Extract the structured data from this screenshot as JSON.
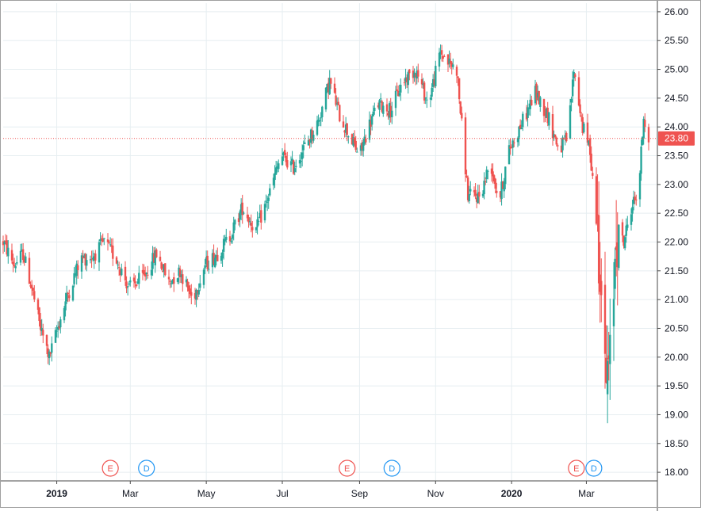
{
  "chart_data": {
    "type": "candlestick",
    "colors": {
      "up": "#26a69a",
      "down": "#ef5350",
      "grid": "#e6eef1",
      "axis": "#4a4a4a",
      "earnings": "#ef5350",
      "dividend": "#2196f3"
    },
    "ylim": [
      17.85,
      26.15
    ],
    "y_ticks": [
      "18.00",
      "18.50",
      "19.00",
      "19.50",
      "20.00",
      "20.50",
      "21.00",
      "21.50",
      "22.00",
      "22.50",
      "23.00",
      "23.50",
      "24.00",
      "24.50",
      "25.00",
      "25.50",
      "26.00"
    ],
    "x_ticks": [
      {
        "label": "2019",
        "date": "2019-01-01",
        "bold": true
      },
      {
        "label": "Mar",
        "date": "2019-03-01",
        "bold": false
      },
      {
        "label": "May",
        "date": "2019-05-01",
        "bold": false
      },
      {
        "label": "Jul",
        "date": "2019-07-01",
        "bold": false
      },
      {
        "label": "Sep",
        "date": "2019-09-01",
        "bold": false
      },
      {
        "label": "Nov",
        "date": "2019-11-01",
        "bold": false
      },
      {
        "label": "2020",
        "date": "2020-01-01",
        "bold": true
      },
      {
        "label": "Mar",
        "date": "2020-03-01",
        "bold": false
      }
    ],
    "x_range": [
      "2018-11-19",
      "2020-04-27"
    ],
    "last_price": {
      "value": 23.8,
      "label": "23.80"
    },
    "events": [
      {
        "type": "earnings",
        "label": "E",
        "date": "2019-02-13"
      },
      {
        "type": "dividend",
        "label": "D",
        "date": "2019-03-14"
      },
      {
        "type": "earnings",
        "label": "E",
        "date": "2019-08-22"
      },
      {
        "type": "dividend",
        "label": "D",
        "date": "2019-09-27"
      },
      {
        "type": "earnings",
        "label": "E",
        "date": "2020-02-22"
      },
      {
        "type": "dividend",
        "label": "D",
        "date": "2020-03-07"
      }
    ],
    "price_path": [
      [
        "2018-11-19",
        22.0
      ],
      [
        "2018-11-28",
        21.6
      ],
      [
        "2018-12-05",
        21.8
      ],
      [
        "2018-12-12",
        21.2
      ],
      [
        "2018-12-19",
        20.5
      ],
      [
        "2018-12-26",
        20.0
      ],
      [
        "2019-01-03",
        20.6
      ],
      [
        "2019-01-10",
        21.1
      ],
      [
        "2019-01-20",
        21.7
      ],
      [
        "2019-01-30",
        21.75
      ],
      [
        "2019-02-08",
        22.0
      ],
      [
        "2019-02-18",
        21.7
      ],
      [
        "2019-02-28",
        21.2
      ],
      [
        "2019-03-12",
        21.4
      ],
      [
        "2019-03-22",
        21.8
      ],
      [
        "2019-04-01",
        21.3
      ],
      [
        "2019-04-10",
        21.5
      ],
      [
        "2019-04-20",
        21.0
      ],
      [
        "2019-04-30",
        21.6
      ],
      [
        "2019-05-10",
        21.8
      ],
      [
        "2019-05-20",
        22.1
      ],
      [
        "2019-05-30",
        22.6
      ],
      [
        "2019-06-10",
        22.2
      ],
      [
        "2019-06-20",
        22.8
      ],
      [
        "2019-06-30",
        23.5
      ],
      [
        "2019-07-10",
        23.3
      ],
      [
        "2019-07-20",
        23.7
      ],
      [
        "2019-07-30",
        24.1
      ],
      [
        "2019-08-08",
        24.8
      ],
      [
        "2019-08-16",
        24.2
      ],
      [
        "2019-08-25",
        23.8
      ],
      [
        "2019-09-01",
        23.5
      ],
      [
        "2019-09-08",
        24.0
      ],
      [
        "2019-09-16",
        24.4
      ],
      [
        "2019-09-26",
        24.3
      ],
      [
        "2019-10-06",
        24.8
      ],
      [
        "2019-10-16",
        25.0
      ],
      [
        "2019-10-26",
        24.4
      ],
      [
        "2019-11-05",
        25.3
      ],
      [
        "2019-11-12",
        25.1
      ],
      [
        "2019-11-18",
        25.0
      ],
      [
        "2019-11-27",
        22.8
      ],
      [
        "2019-12-07",
        22.8
      ],
      [
        "2019-12-15",
        23.4
      ],
      [
        "2019-12-22",
        22.7
      ],
      [
        "2019-12-30",
        23.6
      ],
      [
        "2020-01-10",
        24.1
      ],
      [
        "2020-01-20",
        24.6
      ],
      [
        "2020-01-30",
        24.2
      ],
      [
        "2020-02-08",
        23.6
      ],
      [
        "2020-02-15",
        23.8
      ],
      [
        "2020-02-20",
        25.0
      ],
      [
        "2020-02-27",
        24.0
      ],
      [
        "2020-03-04",
        23.6
      ],
      [
        "2020-03-09",
        22.4
      ],
      [
        "2020-03-12",
        21.8
      ],
      [
        "2020-03-16",
        19.5
      ],
      [
        "2020-03-20",
        19.8
      ],
      [
        "2020-03-25",
        22.3
      ],
      [
        "2020-03-31",
        22.0
      ],
      [
        "2020-04-06",
        22.6
      ],
      [
        "2020-04-12",
        22.9
      ],
      [
        "2020-04-16",
        24.2
      ],
      [
        "2020-04-20",
        23.8
      ]
    ]
  }
}
